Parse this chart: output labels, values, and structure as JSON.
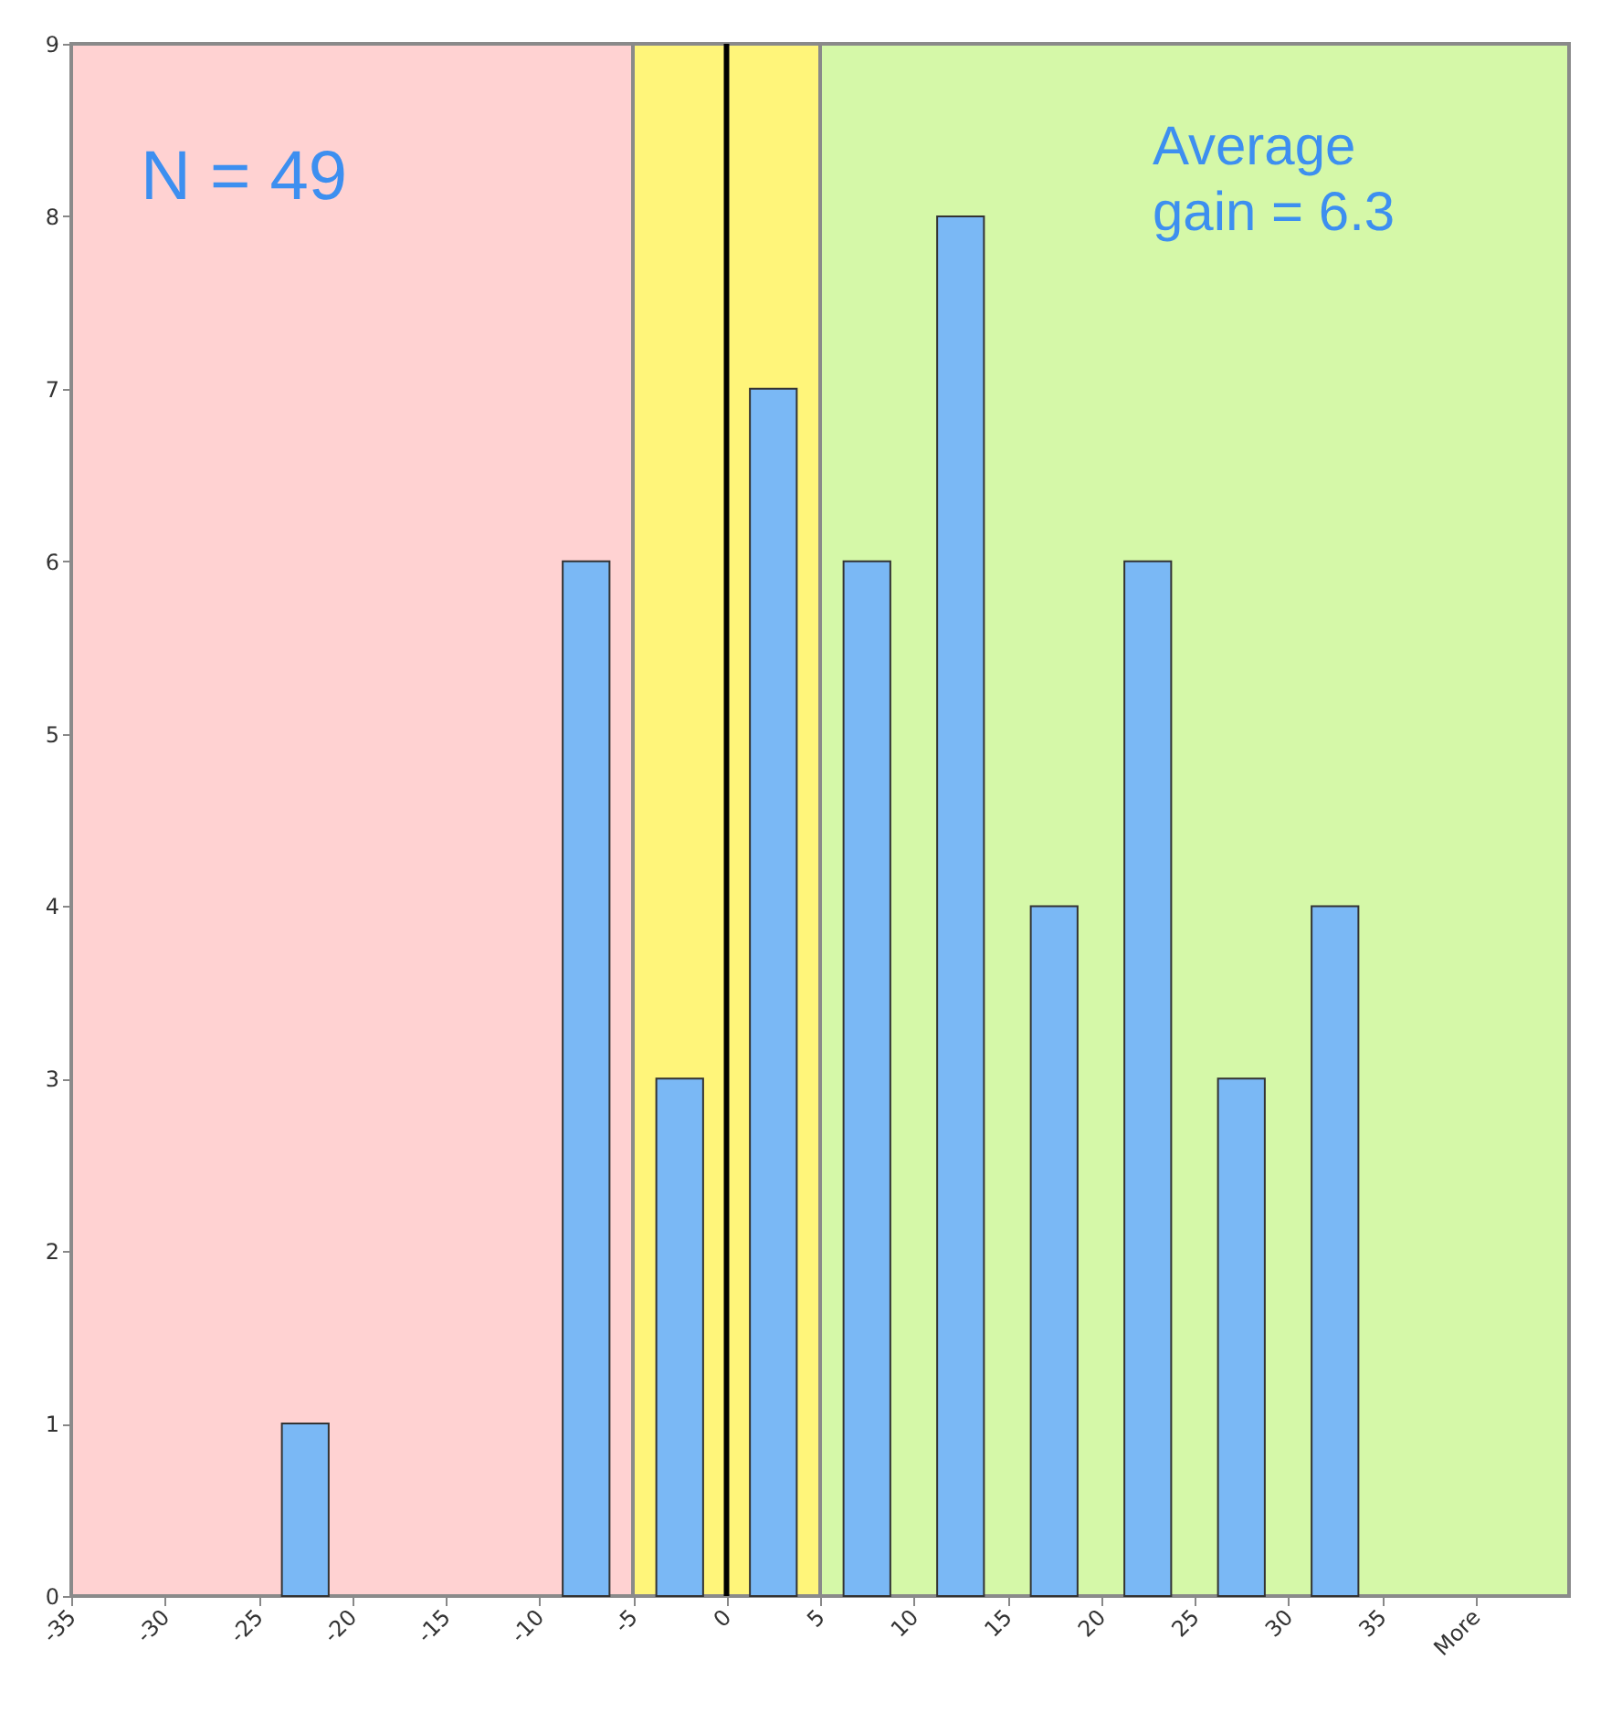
{
  "chart_data": {
    "type": "histogram",
    "bins": [
      -35,
      -30,
      -25,
      -20,
      -15,
      -10,
      -5,
      0,
      5,
      10,
      15,
      20,
      25,
      30,
      35
    ],
    "values": [
      0,
      0,
      1,
      0,
      0,
      6,
      3,
      7,
      6,
      8,
      4,
      6,
      3,
      4
    ],
    "color": "#7ab8f5",
    "xlim": [
      -35,
      45
    ],
    "xticks": [
      -35,
      -30,
      -25,
      -20,
      -15,
      -10,
      -5,
      0,
      5,
      10,
      15,
      20,
      25,
      30,
      35,
      {
        "value": 40,
        "label": "More"
      }
    ],
    "ylim": [
      0,
      9
    ],
    "yticks": [
      0,
      1,
      2,
      3,
      4,
      5,
      6,
      7,
      8,
      9
    ],
    "bands": [
      {
        "axis": "x",
        "from": -35,
        "to": -5,
        "color": "#ffd2d2"
      },
      {
        "axis": "x",
        "from": -5,
        "to": 5,
        "color": "#fff57a"
      },
      {
        "axis": "x",
        "from": 5,
        "to": 45,
        "color": "#d5f8a8"
      }
    ],
    "ref_lines": [
      {
        "axis": "x",
        "value": 0,
        "color": "#000000"
      }
    ],
    "annotations": [
      "N = 49",
      "Average\ngain = 6.3"
    ]
  }
}
